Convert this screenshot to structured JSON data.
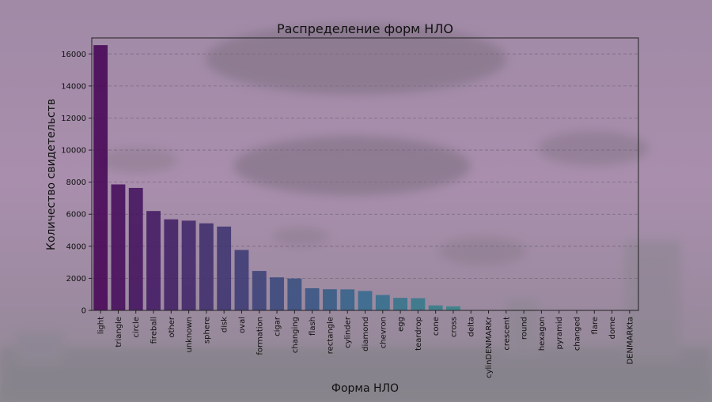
{
  "chart_data": {
    "type": "bar",
    "title": "Распределение форм НЛО",
    "xlabel": "Форма НЛО",
    "ylabel": "Количество свидетельств",
    "ylim": [
      0,
      17000
    ],
    "yticks": [
      0,
      2000,
      4000,
      6000,
      8000,
      10000,
      12000,
      14000,
      16000
    ],
    "grid": "horizontal dashed",
    "categories": [
      "light",
      "triangle",
      "circle",
      "fireball",
      "other",
      "unknown",
      "sphere",
      "disk",
      "oval",
      "formation",
      "cigar",
      "changing",
      "flash",
      "rectangle",
      "cylinder",
      "diamond",
      "chevron",
      "egg",
      "teardrop",
      "cone",
      "cross",
      "delta",
      "cylinDENMARKr",
      "crescent",
      "round",
      "hexagon",
      "pyramid",
      "changed",
      "flare",
      "dome",
      "DENMARKta"
    ],
    "values": [
      16550,
      7860,
      7640,
      6200,
      5680,
      5600,
      5430,
      5230,
      3770,
      2460,
      2060,
      1990,
      1380,
      1320,
      1310,
      1210,
      960,
      780,
      760,
      310,
      250,
      10,
      5,
      3,
      3,
      2,
      2,
      1,
      1,
      1,
      1
    ],
    "colors": {
      "start": "#440154",
      "mid": "#31688e",
      "end": "#35b779",
      "text": "#111111",
      "grid": "#7a6a80"
    }
  }
}
